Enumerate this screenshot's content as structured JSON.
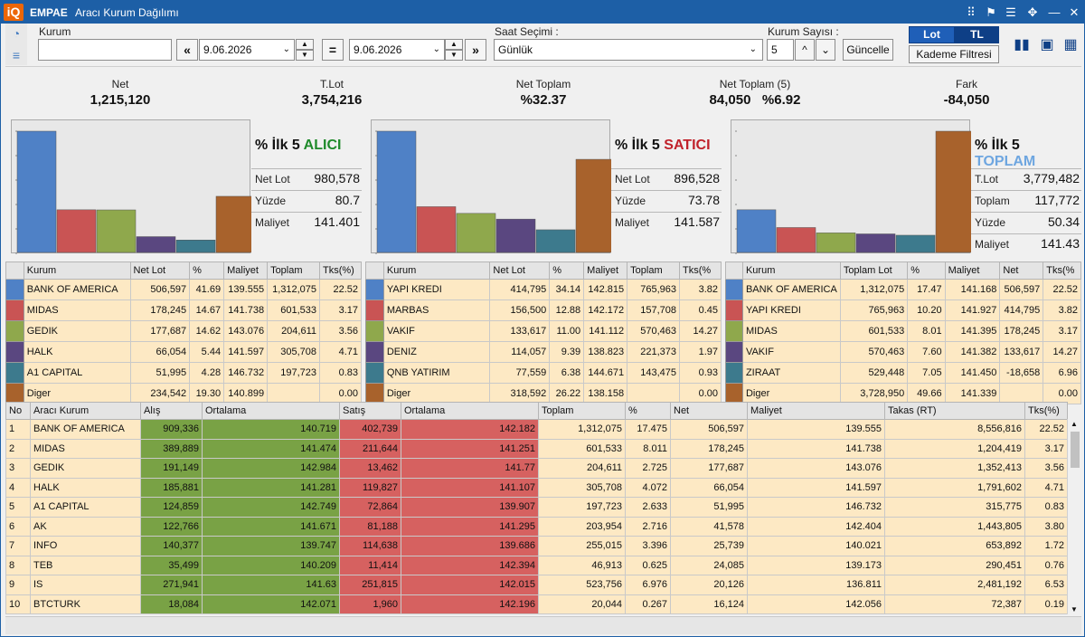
{
  "window": {
    "logo": "iQ",
    "app": "EMPAE",
    "title": "Aracı Kurum Dağılımı"
  },
  "titlebar_icons": [
    "share-icon",
    "flag-icon",
    "settings-icon",
    "collapse-icon",
    "minimize-icon",
    "close-icon"
  ],
  "filters": {
    "kurum_label": "Kurum",
    "kurum_value": "",
    "date_from": "9.06.2026",
    "date_to": "9.06.2026",
    "equals": "=",
    "prev": "«",
    "next": "»",
    "saat_label": "Saat Seçimi :",
    "saat_value": "Günlük",
    "kurum_sayisi_label": "Kurum Sayısı :",
    "kurum_sayisi_value": "5",
    "guncelle": "Güncelle",
    "lot": "Lot",
    "tl": "TL",
    "kademe": "Kademe Filtresi"
  },
  "summary": {
    "net_label": "Net",
    "net_value": "1,215,120",
    "tlot_label": "T.Lot",
    "tlot_value": "3,754,216",
    "nettoplam_label": "Net Toplam",
    "nettoplam_value": "%32.37",
    "nettoplam5_label": "Net Toplam  (5)",
    "nettoplam5_value": "84,050   %6.92",
    "fark_label": "Fark",
    "fark_value": "-84,050"
  },
  "colors": {
    "bank": "#4f81c6",
    "second": "#c95454",
    "third": "#8fa84c",
    "fourth": "#5a4780",
    "fifth": "#3d7a8d",
    "other": "#a8622c",
    "alici": "#1e8a2a",
    "satici": "#c0212a",
    "toplam": "#6ea6e0"
  },
  "panels": [
    {
      "title_prefix": "% İlk 5",
      "title_word": "ALICI",
      "stats": [
        {
          "label": "Net Lot",
          "value": "980,578"
        },
        {
          "label": "Yüzde",
          "value": "80.7"
        },
        {
          "label": "Maliyet",
          "value": "141.401"
        }
      ],
      "headers": [
        "Kurum",
        "Net Lot",
        "%",
        "Maliyet",
        "Toplam",
        "Tks(%)"
      ],
      "rows": [
        [
          "BANK OF AMERICA",
          "506,597",
          "41.69",
          "139.555",
          "1,312,075",
          "22.52"
        ],
        [
          "MIDAS",
          "178,245",
          "14.67",
          "141.738",
          "601,533",
          "3.17"
        ],
        [
          "GEDIK",
          "177,687",
          "14.62",
          "143.076",
          "204,611",
          "3.56"
        ],
        [
          "HALK",
          "66,054",
          "5.44",
          "141.597",
          "305,708",
          "4.71"
        ],
        [
          "A1 CAPITAL",
          "51,995",
          "4.28",
          "146.732",
          "197,723",
          "0.83"
        ],
        [
          "Diger",
          "234,542",
          "19.30",
          "140.899",
          "",
          "0.00"
        ]
      ],
      "bars": [
        506597,
        178245,
        177687,
        66054,
        51995,
        234542
      ]
    },
    {
      "title_prefix": "% İlk 5",
      "title_word": "SATICI",
      "stats": [
        {
          "label": "Net Lot",
          "value": "896,528"
        },
        {
          "label": "Yüzde",
          "value": "73.78"
        },
        {
          "label": "Maliyet",
          "value": "141.587"
        }
      ],
      "headers": [
        "Kurum",
        "Net Lot",
        "%",
        "Maliyet",
        "Toplam",
        "Tks(%"
      ],
      "rows": [
        [
          "YAPI KREDI",
          "414,795",
          "34.14",
          "142.815",
          "765,963",
          "3.82"
        ],
        [
          "MARBAS",
          "156,500",
          "12.88",
          "142.172",
          "157,708",
          "0.45"
        ],
        [
          "VAKIF",
          "133,617",
          "11.00",
          "141.112",
          "570,463",
          "14.27"
        ],
        [
          "DENIZ",
          "114,057",
          "9.39",
          "138.823",
          "221,373",
          "1.97"
        ],
        [
          "QNB YATIRIM",
          "77,559",
          "6.38",
          "144.671",
          "143,475",
          "0.93"
        ],
        [
          "Diger",
          "318,592",
          "26.22",
          "138.158",
          "",
          "0.00"
        ]
      ],
      "bars": [
        414795,
        156500,
        133617,
        114057,
        77559,
        318592
      ]
    },
    {
      "title_prefix": "% İlk 5",
      "title_word": "TOPLAM",
      "stats": [
        {
          "label": "T.Lot",
          "value": "3,779,482"
        },
        {
          "label": "Toplam",
          "value": "117,772"
        },
        {
          "label": "Yüzde",
          "value": "50.34"
        },
        {
          "label": "Maliyet",
          "value": "141.43"
        }
      ],
      "headers": [
        "Kurum",
        "Toplam Lot",
        "%",
        "Maliyet",
        "Net",
        "Tks(%"
      ],
      "rows": [
        [
          "BANK OF AMERICA",
          "1,312,075",
          "17.47",
          "141.168",
          "506,597",
          "22.52"
        ],
        [
          "YAPI KREDI",
          "765,963",
          "10.20",
          "141.927",
          "414,795",
          "3.82"
        ],
        [
          "MIDAS",
          "601,533",
          "8.01",
          "141.395",
          "178,245",
          "3.17"
        ],
        [
          "VAKIF",
          "570,463",
          "7.60",
          "141.382",
          "133,617",
          "14.27"
        ],
        [
          "ZIRAAT",
          "529,448",
          "7.05",
          "141.450",
          "-18,658",
          "6.96"
        ],
        [
          "Diger",
          "3,728,950",
          "49.66",
          "141.339",
          "",
          "0.00"
        ]
      ],
      "bars": [
        1312075,
        765963,
        601533,
        570463,
        529448,
        3728950
      ]
    }
  ],
  "main_table": {
    "headers": [
      "No",
      "Aracı Kurum",
      "Alış",
      "Ortalama",
      "Satış",
      "Ortalama",
      "Toplam",
      "%",
      "Net",
      "Maliyet",
      "Takas (RT)",
      "Tks(%)"
    ],
    "rows": [
      [
        "1",
        "BANK OF AMERICA",
        "909,336",
        "140.719",
        "402,739",
        "142.182",
        "1,312,075",
        "17.475",
        "506,597",
        "139.555",
        "8,556,816",
        "22.52"
      ],
      [
        "2",
        "MIDAS",
        "389,889",
        "141.474",
        "211,644",
        "141.251",
        "601,533",
        "8.011",
        "178,245",
        "141.738",
        "1,204,419",
        "3.17"
      ],
      [
        "3",
        "GEDIK",
        "191,149",
        "142.984",
        "13,462",
        "141.77",
        "204,611",
        "2.725",
        "177,687",
        "143.076",
        "1,352,413",
        "3.56"
      ],
      [
        "4",
        "HALK",
        "185,881",
        "141.281",
        "119,827",
        "141.107",
        "305,708",
        "4.072",
        "66,054",
        "141.597",
        "1,791,602",
        "4.71"
      ],
      [
        "5",
        "A1 CAPITAL",
        "124,859",
        "142.749",
        "72,864",
        "139.907",
        "197,723",
        "2.633",
        "51,995",
        "146.732",
        "315,775",
        "0.83"
      ],
      [
        "6",
        "AK",
        "122,766",
        "141.671",
        "81,188",
        "141.295",
        "203,954",
        "2.716",
        "41,578",
        "142.404",
        "1,443,805",
        "3.80"
      ],
      [
        "7",
        "INFO",
        "140,377",
        "139.747",
        "114,638",
        "139.686",
        "255,015",
        "3.396",
        "25,739",
        "140.021",
        "653,892",
        "1.72"
      ],
      [
        "8",
        "TEB",
        "35,499",
        "140.209",
        "11,414",
        "142.394",
        "46,913",
        "0.625",
        "24,085",
        "139.173",
        "290,451",
        "0.76"
      ],
      [
        "9",
        "IS",
        "271,941",
        "141.63",
        "251,815",
        "142.015",
        "523,756",
        "6.976",
        "20,126",
        "136.811",
        "2,481,192",
        "6.53"
      ],
      [
        "10",
        "BTCTURK",
        "18,084",
        "142.071",
        "1,960",
        "142.196",
        "20,044",
        "0.267",
        "16,124",
        "142.056",
        "72,387",
        "0.19"
      ]
    ]
  }
}
